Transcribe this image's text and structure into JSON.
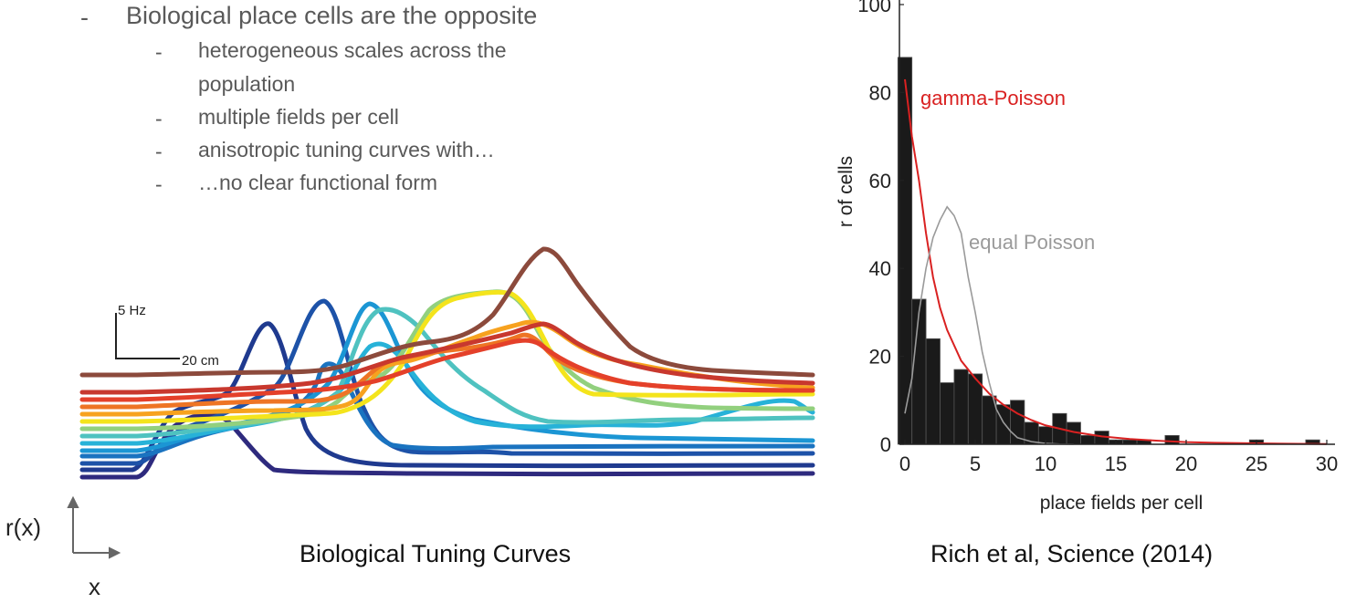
{
  "bullets": {
    "main": "Biological place cells are the opposite",
    "subs": [
      "heterogeneous scales across the",
      "population",
      "multiple fields per cell",
      "anisotropic tuning curves with…",
      "…no clear functional form"
    ],
    "dash": "-"
  },
  "tuning_figure": {
    "scalebar_y": "5 Hz",
    "scalebar_x": "20 cm",
    "curve_colors": [
      "#2e2a7e",
      "#1f3a8f",
      "#1d52a8",
      "#1a73c0",
      "#1b96d4",
      "#27b2d8",
      "#4fc2c0",
      "#92d07e",
      "#f4e41c",
      "#f7a21f",
      "#ee7424",
      "#e4402a",
      "#c8382e",
      "#8c4a3c"
    ],
    "caption": "Biological Tuning Curves",
    "axis_y": "r(x)",
    "axis_x": "x"
  },
  "histogram": {
    "caption": "Rich et al, Science (2014)",
    "gamma_color": "#d92121",
    "equal_color": "#9a9a9a",
    "bar_color": "#1a1a1a"
  },
  "chart_data": {
    "type": "bar",
    "title": "",
    "xlabel": "place fields per cell",
    "ylabel": "r of cells",
    "xlim": [
      -1,
      31
    ],
    "ylim": [
      0,
      100
    ],
    "xticks": [
      0,
      5,
      10,
      15,
      20,
      25,
      30
    ],
    "yticks": [
      0,
      20,
      40,
      60,
      80,
      100
    ],
    "ytick_labels": [
      "0",
      "20",
      "40",
      "60",
      "80",
      "100"
    ],
    "x": [
      0,
      1,
      2,
      3,
      4,
      5,
      6,
      7,
      8,
      9,
      10,
      11,
      12,
      13,
      14,
      15,
      16,
      17,
      18,
      19,
      20,
      21,
      22,
      23,
      24,
      25,
      26,
      27,
      28,
      29,
      30
    ],
    "values": [
      88,
      33,
      24,
      14,
      17,
      16,
      11,
      9,
      10,
      5,
      4,
      7,
      5,
      2,
      3,
      1,
      1,
      1,
      0,
      2,
      0,
      0,
      0,
      0,
      0,
      1,
      0,
      0,
      0,
      1,
      0
    ],
    "series": [
      {
        "name": "gamma-Poisson",
        "type": "line",
        "x": [
          0,
          0.5,
          1,
          1.5,
          2,
          2.5,
          3,
          4,
          5,
          6,
          7,
          8,
          9,
          10,
          12,
          14,
          16,
          18,
          20,
          22,
          25,
          28,
          30
        ],
        "values": [
          83,
          70,
          60,
          48,
          38,
          31,
          26,
          19,
          15,
          11.5,
          9,
          7,
          5.5,
          4.3,
          2.8,
          1.8,
          1.2,
          0.8,
          0.5,
          0.35,
          0.2,
          0.1,
          0.05
        ]
      },
      {
        "name": "equal Poisson",
        "type": "line",
        "x": [
          0,
          0.5,
          1,
          1.5,
          2,
          2.5,
          3,
          3.5,
          4,
          4.5,
          5,
          5.5,
          6,
          6.5,
          7,
          7.5,
          8,
          9,
          10,
          11,
          12
        ],
        "values": [
          7,
          15,
          30,
          40,
          47,
          51,
          54,
          52,
          48,
          38,
          30,
          21,
          14,
          8,
          5,
          3,
          1.5,
          0.6,
          0.2,
          0.05,
          0
        ]
      }
    ]
  }
}
